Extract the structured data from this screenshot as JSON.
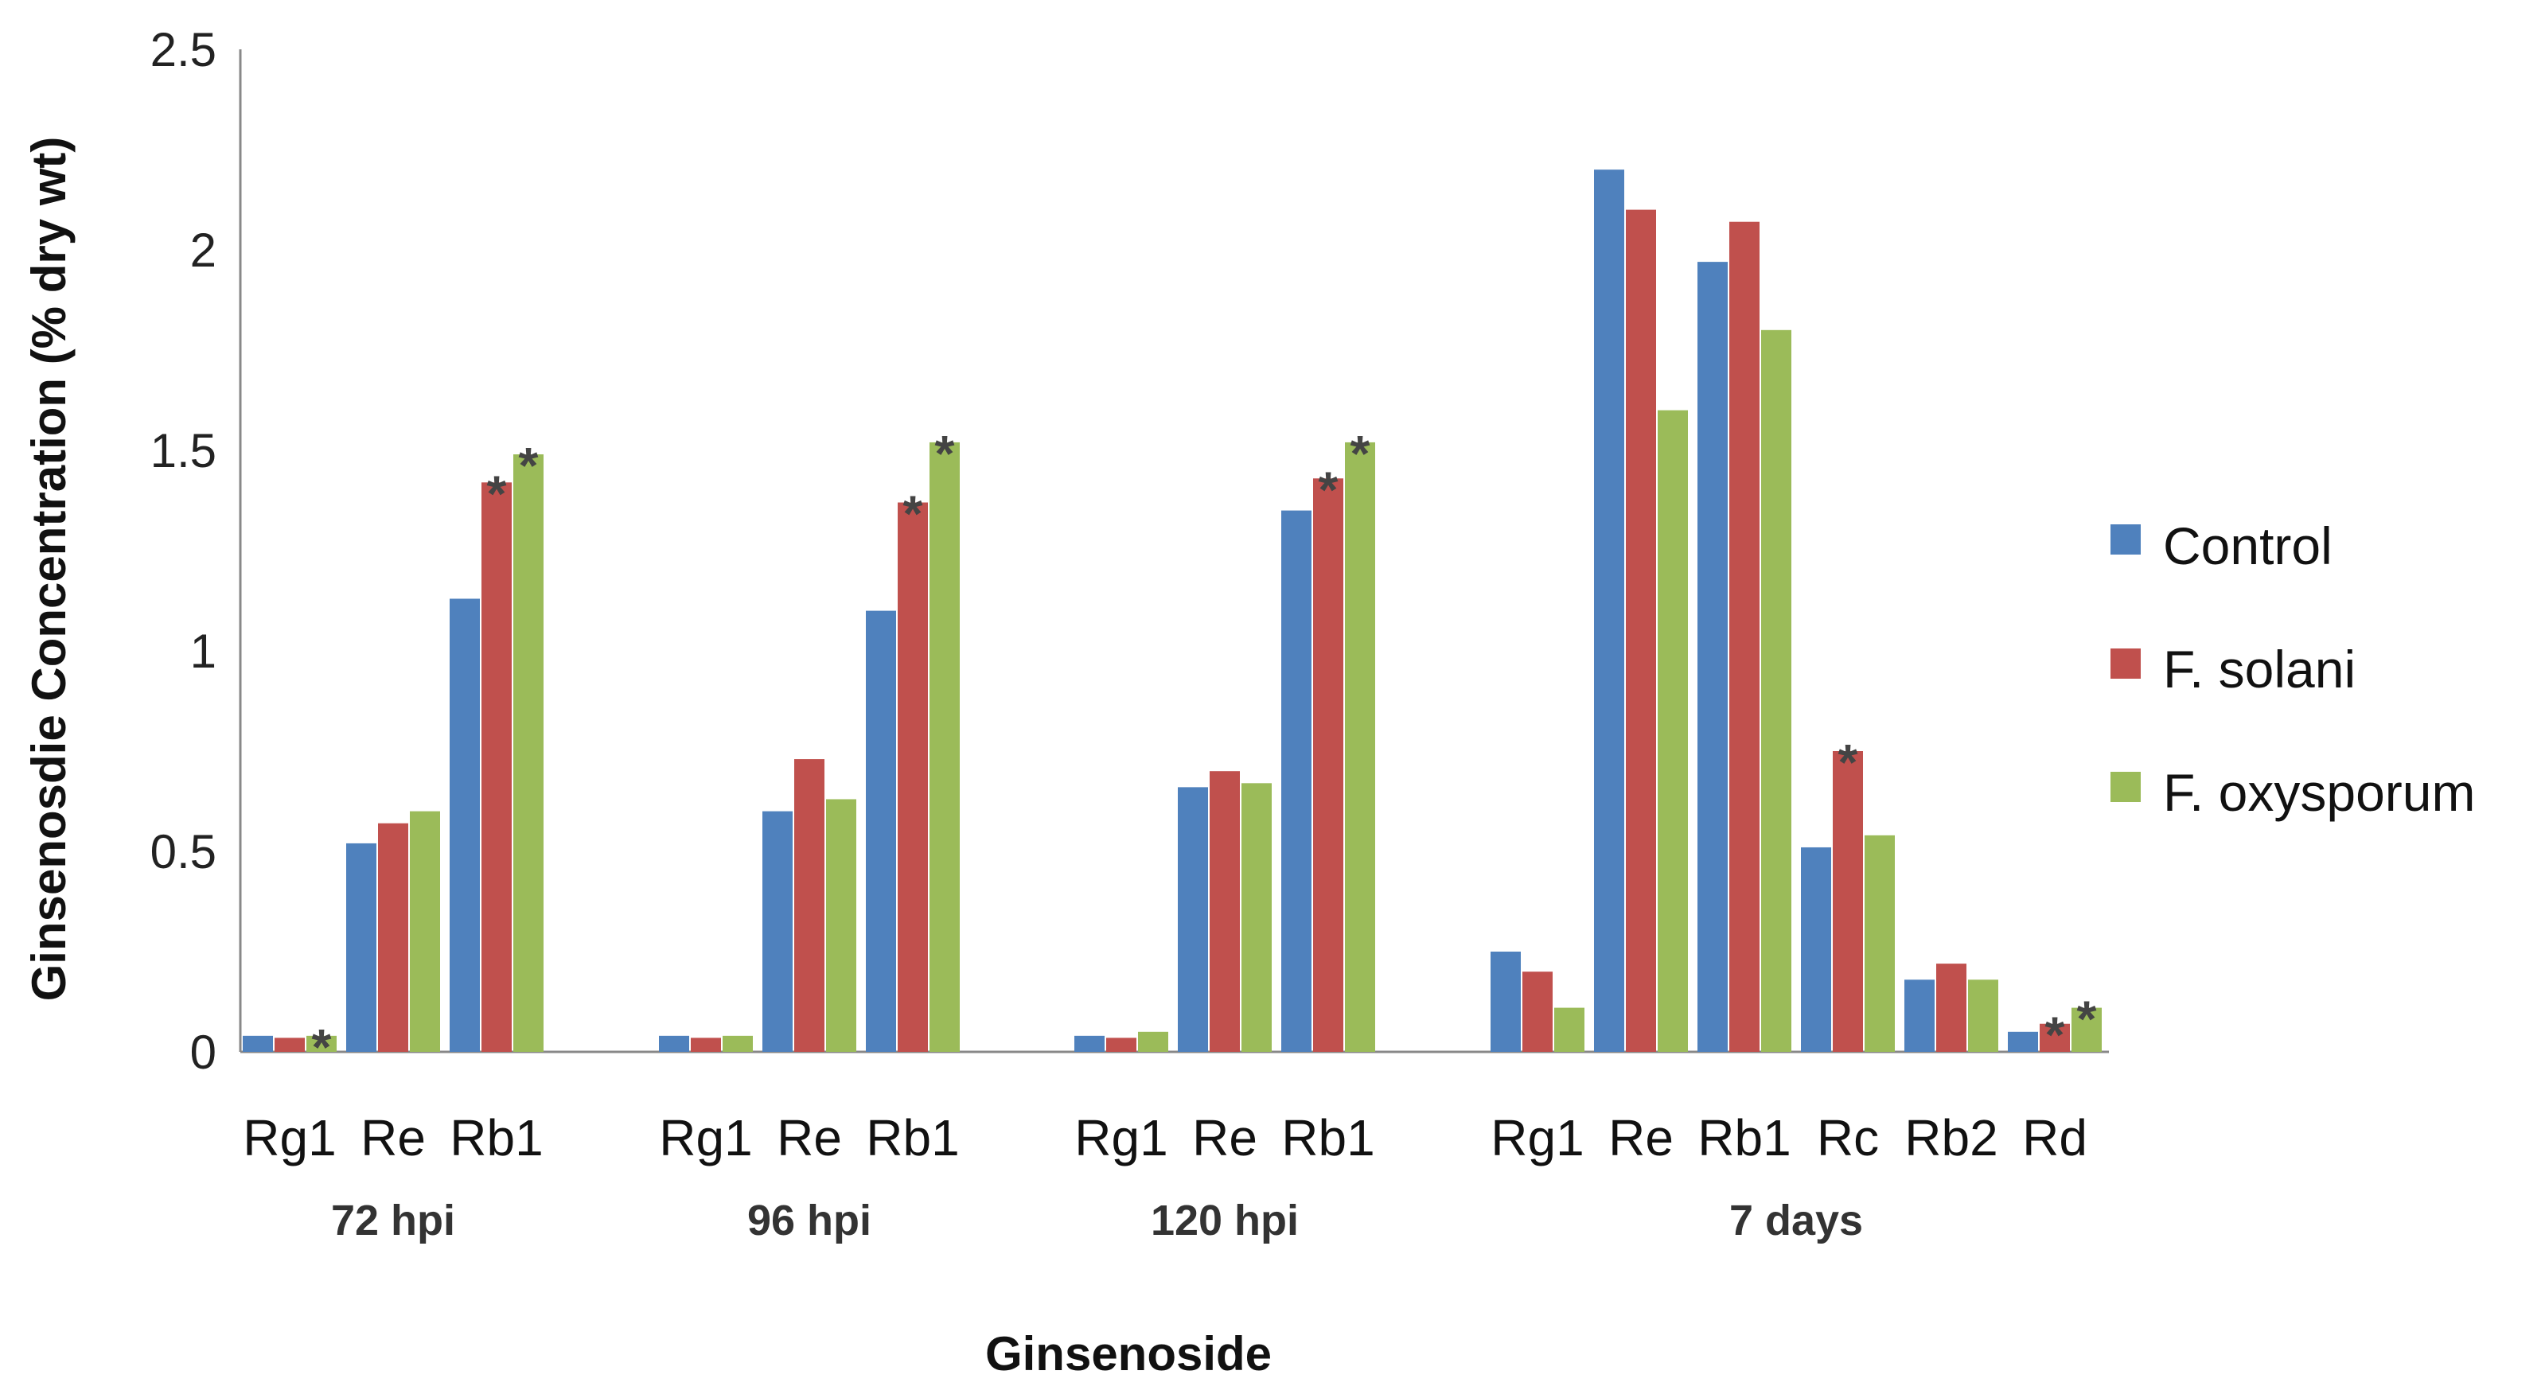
{
  "chart_data": {
    "type": "bar",
    "title": "",
    "xlabel": "Ginsenoside",
    "ylabel": "Ginsenosdie Concentration (% dry wt)",
    "ylim": [
      0,
      2.5
    ],
    "yticks": [
      0,
      0.5,
      1,
      1.5,
      2,
      2.5
    ],
    "ytick_labels": [
      "0",
      "0.5",
      "1",
      "1.5",
      "2",
      "2.5"
    ],
    "grid": false,
    "legend_position": "right",
    "series": [
      {
        "name": "Control",
        "color": "#4F81BD"
      },
      {
        "name": "F. solani",
        "color": "#C0504D"
      },
      {
        "name": "F. oxysporum",
        "color": "#9BBB59"
      }
    ],
    "groups": [
      {
        "label": "72 hpi",
        "categories": [
          {
            "label": "Rg1",
            "values": [
              0.04,
              0.035,
              0.04
            ],
            "significant": [
              false,
              false,
              true
            ]
          },
          {
            "label": "Re",
            "values": [
              0.52,
              0.57,
              0.6
            ],
            "significant": [
              false,
              false,
              false
            ]
          },
          {
            "label": "Rb1",
            "values": [
              1.13,
              1.42,
              1.49
            ],
            "significant": [
              false,
              true,
              true
            ]
          }
        ]
      },
      {
        "label": "96 hpi",
        "categories": [
          {
            "label": "Rg1",
            "values": [
              0.04,
              0.035,
              0.04
            ],
            "significant": [
              false,
              false,
              false
            ]
          },
          {
            "label": "Re",
            "values": [
              0.6,
              0.73,
              0.63
            ],
            "significant": [
              false,
              false,
              false
            ]
          },
          {
            "label": "Rb1",
            "values": [
              1.1,
              1.37,
              1.52
            ],
            "significant": [
              false,
              true,
              true
            ]
          }
        ]
      },
      {
        "label": "120 hpi",
        "categories": [
          {
            "label": "Rg1",
            "values": [
              0.04,
              0.035,
              0.05
            ],
            "significant": [
              false,
              false,
              false
            ]
          },
          {
            "label": "Re",
            "values": [
              0.66,
              0.7,
              0.67
            ],
            "significant": [
              false,
              false,
              false
            ]
          },
          {
            "label": "Rb1",
            "values": [
              1.35,
              1.43,
              1.52
            ],
            "significant": [
              false,
              true,
              true
            ]
          }
        ]
      },
      {
        "label": "7 days",
        "categories": [
          {
            "label": "Rg1",
            "values": [
              0.25,
              0.2,
              0.11
            ],
            "significant": [
              false,
              false,
              false
            ]
          },
          {
            "label": "Re",
            "values": [
              2.2,
              2.1,
              1.6
            ],
            "significant": [
              false,
              false,
              false
            ]
          },
          {
            "label": "Rb1",
            "values": [
              1.97,
              2.07,
              1.8
            ],
            "significant": [
              false,
              false,
              false
            ]
          },
          {
            "label": "Rc",
            "values": [
              0.51,
              0.75,
              0.54
            ],
            "significant": [
              false,
              true,
              false
            ]
          },
          {
            "label": "Rb2",
            "values": [
              0.18,
              0.22,
              0.18
            ],
            "significant": [
              false,
              false,
              false
            ]
          },
          {
            "label": "Rd",
            "values": [
              0.05,
              0.07,
              0.11
            ],
            "significant": [
              false,
              true,
              true
            ]
          }
        ]
      }
    ],
    "significance_marker": "*"
  }
}
